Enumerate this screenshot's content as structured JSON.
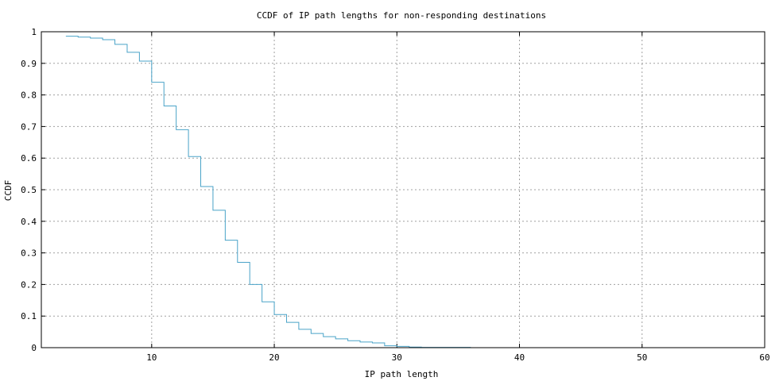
{
  "chart_data": {
    "type": "line",
    "step": true,
    "title": "CCDF of IP path lengths for non-responding destinations",
    "xlabel": "IP path length",
    "ylabel": "CCDF",
    "xlim": [
      1,
      60
    ],
    "ylim": [
      0,
      1
    ],
    "xticks": [
      10,
      20,
      30,
      40,
      50,
      60
    ],
    "xtick_labels": [
      "10",
      "20",
      "30",
      "40",
      "50",
      "60"
    ],
    "yticks": [
      0,
      0.1,
      0.2,
      0.3,
      0.4,
      0.5,
      0.6,
      0.7,
      0.8,
      0.9,
      1
    ],
    "ytick_labels": [
      "0",
      "0.1",
      "0.2",
      "0.3",
      "0.4",
      "0.5",
      "0.6",
      "0.7",
      "0.8",
      "0.9",
      "1"
    ],
    "grid": true,
    "series": [
      {
        "color": "#4aa3c8",
        "x": [
          3,
          4,
          5,
          6,
          7,
          8,
          9,
          10,
          11,
          12,
          13,
          14,
          15,
          16,
          17,
          18,
          19,
          20,
          21,
          22,
          23,
          24,
          25,
          26,
          27,
          28,
          29,
          30,
          31,
          32,
          33,
          34,
          35,
          36
        ],
        "y": [
          0.986,
          0.983,
          0.98,
          0.975,
          0.96,
          0.935,
          0.907,
          0.84,
          0.765,
          0.69,
          0.605,
          0.51,
          0.435,
          0.34,
          0.27,
          0.2,
          0.145,
          0.105,
          0.08,
          0.058,
          0.045,
          0.035,
          0.028,
          0.022,
          0.018,
          0.015,
          0.006,
          0.004,
          0.002,
          0.001,
          0.001,
          0.001,
          0.001,
          0.0
        ]
      }
    ]
  }
}
